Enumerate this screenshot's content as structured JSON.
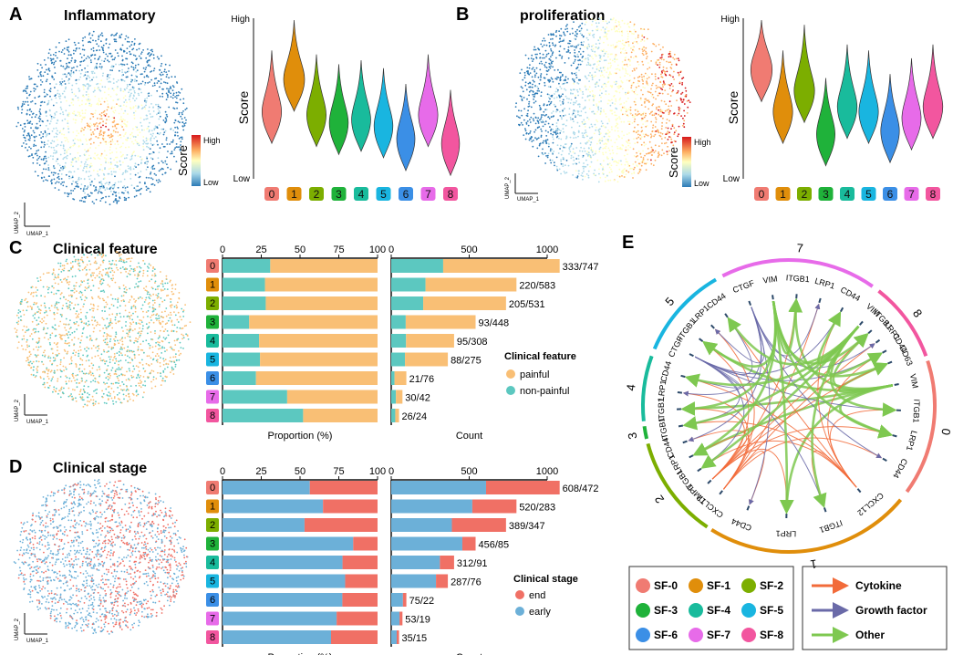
{
  "colors": {
    "clusters": [
      "#f07b72",
      "#e08e0b",
      "#7cae00",
      "#1fb23a",
      "#19bb9c",
      "#19b5e0",
      "#3b8fe6",
      "#e76be9",
      "#f2569f"
    ],
    "painful": "#f9bf75",
    "non_painful": "#5cc8c0",
    "end": "#f07065",
    "early": "#6cb0d8",
    "cytokine": "#f26b3a",
    "growth_factor": "#6a6aa8",
    "other": "#7ec850",
    "score_high": "#d7191c",
    "score_mid": "#ffffbf",
    "score_low": "#2c7bb6"
  },
  "panels": {
    "A": {
      "letter": "A",
      "title": "Inflammatory",
      "umap_y": "UMAP_2",
      "umap_x": "UMAP_1",
      "scale_high": "High",
      "scale_low": "Low",
      "scale_title": "Score"
    },
    "B": {
      "letter": "B",
      "title": "proliferation",
      "umap_y": "UMAP_2",
      "umap_x": "UMAP_1",
      "scale_high": "High",
      "scale_low": "Low",
      "scale_title": "Score"
    },
    "C": {
      "letter": "C",
      "title": "Clinical feature",
      "umap_y": "UMAP_2",
      "umap_x": "UMAP_1",
      "legend_title": "Clinical feature",
      "legend_items": [
        "painful",
        "non-painful"
      ]
    },
    "D": {
      "letter": "D",
      "title": "Clinical stage",
      "umap_y": "UMAP_2",
      "umap_x": "UMAP_1",
      "legend_title": "Clinical stage",
      "legend_items": [
        "end",
        "early"
      ]
    },
    "E": {
      "letter": "E"
    }
  },
  "chart_data": [
    {
      "id": "A-violin",
      "type": "violin",
      "title": "Inflammatory",
      "ylabel": "Score",
      "y_top_label": "High",
      "y_bottom_label": "Low",
      "categories": [
        "0",
        "1",
        "2",
        "3",
        "4",
        "5",
        "6",
        "7",
        "8"
      ],
      "median_relative": [
        0.42,
        0.62,
        0.4,
        0.35,
        0.37,
        0.33,
        0.25,
        0.4,
        0.22
      ]
    },
    {
      "id": "B-violin",
      "type": "violin",
      "title": "proliferation",
      "ylabel": "Score",
      "y_top_label": "High",
      "y_bottom_label": "Low",
      "categories": [
        "0",
        "1",
        "2",
        "3",
        "4",
        "5",
        "6",
        "7",
        "8"
      ],
      "median_relative": [
        0.68,
        0.42,
        0.55,
        0.28,
        0.45,
        0.42,
        0.3,
        0.38,
        0.45
      ]
    },
    {
      "id": "C-proportion",
      "type": "bar",
      "stacked": true,
      "orientation": "horizontal",
      "xlabel": "Proportion (%)",
      "xlim": [
        0,
        100
      ],
      "xticks": [
        0,
        25,
        50,
        75,
        100
      ],
      "categories": [
        "0",
        "1",
        "2",
        "3",
        "4",
        "5",
        "6",
        "7",
        "8"
      ],
      "series": [
        {
          "name": "non-painful",
          "values": [
            30.8,
            27.4,
            27.9,
            17.2,
            23.6,
            24.2,
            21.6,
            41.7,
            52.0
          ]
        },
        {
          "name": "painful",
          "values": [
            69.2,
            72.6,
            72.1,
            82.8,
            76.4,
            75.8,
            78.4,
            58.3,
            48.0
          ]
        }
      ]
    },
    {
      "id": "C-count",
      "type": "bar",
      "stacked": true,
      "orientation": "horizontal",
      "xlabel": "Count",
      "xlim": [
        0,
        1000
      ],
      "xticks": [
        0,
        500,
        1000
      ],
      "categories": [
        "0",
        "1",
        "2",
        "3",
        "4",
        "5",
        "6",
        "7",
        "8"
      ],
      "series": [
        {
          "name": "non-painful",
          "values": [
            333,
            220,
            205,
            93,
            95,
            88,
            21,
            30,
            26
          ]
        },
        {
          "name": "painful",
          "values": [
            747,
            583,
            531,
            448,
            308,
            275,
            76,
            42,
            24
          ]
        }
      ],
      "labels": [
        "333/747",
        "220/583",
        "205/531",
        "93/448",
        "95/308",
        "88/275",
        "21/76",
        "30/42",
        "26/24"
      ]
    },
    {
      "id": "D-proportion",
      "type": "bar",
      "stacked": true,
      "orientation": "horizontal",
      "xlabel": "Proportion (%)",
      "xlim": [
        0,
        100
      ],
      "xticks": [
        0,
        25,
        50,
        75,
        100
      ],
      "categories": [
        "0",
        "1",
        "2",
        "3",
        "4",
        "5",
        "6",
        "7",
        "8"
      ],
      "series": [
        {
          "name": "early",
          "values": [
            56.3,
            64.8,
            52.9,
            84.3,
            77.4,
            79.1,
            77.3,
            73.6,
            70.0
          ]
        },
        {
          "name": "end",
          "values": [
            43.7,
            35.2,
            47.1,
            15.7,
            22.6,
            20.9,
            22.7,
            26.4,
            30.0
          ]
        }
      ]
    },
    {
      "id": "D-count",
      "type": "bar",
      "stacked": true,
      "orientation": "horizontal",
      "xlabel": "Count",
      "xlim": [
        0,
        1000
      ],
      "xticks": [
        0,
        500,
        1000
      ],
      "categories": [
        "0",
        "1",
        "2",
        "3",
        "4",
        "5",
        "6",
        "7",
        "8"
      ],
      "series": [
        {
          "name": "early",
          "values": [
            608,
            520,
            389,
            456,
            312,
            287,
            75,
            53,
            35
          ]
        },
        {
          "name": "end",
          "values": [
            472,
            283,
            347,
            85,
            91,
            76,
            22,
            19,
            15
          ]
        }
      ],
      "labels": [
        "608/472",
        "520/283",
        "389/347",
        "456/85",
        "312/91",
        "287/76",
        "75/22",
        "53/19",
        "35/15"
      ]
    }
  ],
  "chord": {
    "groups": [
      {
        "cluster": "0",
        "genes": [
          "VIM",
          "ITGB1",
          "LRP1",
          "CD44"
        ]
      },
      {
        "cluster": "1",
        "genes": [
          "CXCL12",
          "ITGB1",
          "LRP1",
          "CD44"
        ]
      },
      {
        "cluster": "2",
        "genes": [
          "CXCL12",
          "TIMP1",
          "ITGB1",
          "LRP1",
          "CD44"
        ]
      },
      {
        "cluster": "3",
        "genes": [
          "ITGB1"
        ]
      },
      {
        "cluster": "4",
        "genes": [
          "ITGB1",
          "LRP1",
          "CD44"
        ]
      },
      {
        "cluster": "5",
        "genes": [
          "CTGF",
          "ITGB1",
          "LRP1",
          "CD44"
        ]
      },
      {
        "cluster": "7",
        "genes": [
          "CTGF",
          "VIM",
          "ITGB1",
          "LRP1",
          "CD44"
        ]
      },
      {
        "cluster": "8",
        "genes": [
          "VIM",
          "ITGB1",
          "LRP1",
          "CD44",
          "CD63"
        ]
      }
    ],
    "legend_clusters": [
      "SF-0",
      "SF-1",
      "SF-2",
      "SF-3",
      "SF-4",
      "SF-5",
      "SF-6",
      "SF-7",
      "SF-8"
    ],
    "legend_types": [
      "Cytokine",
      "Growth factor",
      "Other"
    ]
  }
}
